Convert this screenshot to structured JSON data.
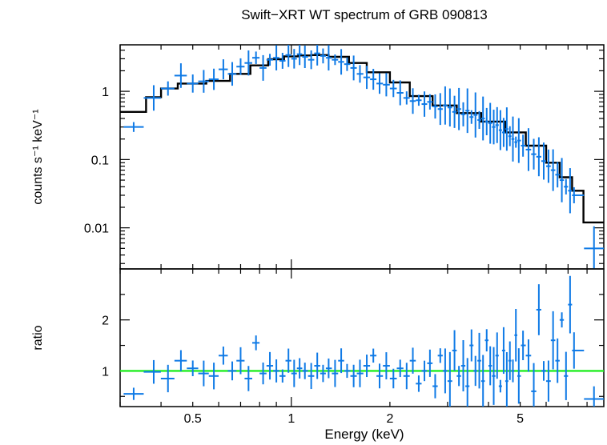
{
  "chart_data": [
    {
      "type": "scatter",
      "panel": "spectrum",
      "title": "Swift−XRT WT spectrum of GRB 090813",
      "ylabel": "counts s⁻¹ keV⁻¹",
      "xlabel": "",
      "xscale": "log",
      "yscale": "log",
      "xlim": [
        0.3,
        9.0
      ],
      "ylim": [
        0.0025,
        4.8
      ],
      "yticks": [
        {
          "value": 1,
          "label": "1"
        },
        {
          "value": 0.1,
          "label": "0.1"
        },
        {
          "value": 0.01,
          "label": "0.01"
        }
      ],
      "series": [
        {
          "kind": "data",
          "color": "#0f7ae6",
          "x": [
            0.33,
            0.38,
            0.42,
            0.46,
            0.5,
            0.54,
            0.58,
            0.62,
            0.66,
            0.7,
            0.74,
            0.78,
            0.82,
            0.86,
            0.9,
            0.94,
            0.98,
            1.02,
            1.06,
            1.1,
            1.15,
            1.2,
            1.25,
            1.3,
            1.36,
            1.42,
            1.48,
            1.55,
            1.62,
            1.7,
            1.78,
            1.86,
            1.95,
            2.05,
            2.15,
            2.25,
            2.35,
            2.45,
            2.55,
            2.65,
            2.75,
            2.85,
            2.95,
            3.05,
            3.15,
            3.25,
            3.35,
            3.45,
            3.55,
            3.65,
            3.75,
            3.85,
            3.95,
            4.05,
            4.15,
            4.25,
            4.35,
            4.45,
            4.55,
            4.65,
            4.75,
            4.85,
            4.95,
            5.1,
            5.3,
            5.5,
            5.7,
            5.9,
            6.1,
            6.3,
            6.5,
            6.7,
            6.9,
            7.1,
            7.3,
            8.4
          ],
          "y": [
            0.3,
            0.8,
            1.1,
            1.7,
            1.3,
            1.4,
            1.5,
            2.1,
            1.8,
            2.3,
            2.6,
            3.1,
            2.2,
            2.9,
            3.1,
            2.8,
            3.4,
            3.0,
            3.5,
            3.2,
            2.9,
            3.6,
            3.3,
            3.1,
            2.9,
            2.7,
            2.5,
            2.2,
            1.8,
            1.6,
            1.5,
            1.3,
            1.25,
            1.1,
            0.95,
            0.8,
            0.72,
            0.74,
            0.65,
            0.7,
            0.6,
            0.55,
            0.62,
            0.58,
            0.5,
            0.55,
            0.46,
            0.52,
            0.42,
            0.45,
            0.38,
            0.4,
            0.36,
            0.34,
            0.3,
            0.32,
            0.27,
            0.25,
            0.28,
            0.22,
            0.2,
            0.18,
            0.19,
            0.16,
            0.14,
            0.12,
            0.11,
            0.095,
            0.08,
            0.07,
            0.06,
            0.05,
            0.04,
            0.035,
            0.03,
            0.005
          ]
        },
        {
          "kind": "model",
          "color": "#000000",
          "x": [
            0.3,
            0.36,
            0.4,
            0.45,
            0.55,
            0.65,
            0.75,
            0.85,
            0.95,
            1.05,
            1.15,
            1.3,
            1.5,
            1.7,
            2.0,
            2.3,
            2.7,
            3.2,
            3.8,
            4.5,
            5.2,
            6.0,
            6.6,
            7.2,
            7.8,
            9.0
          ],
          "y": [
            0.5,
            0.82,
            1.1,
            1.3,
            1.42,
            1.8,
            2.4,
            2.95,
            3.25,
            3.35,
            3.4,
            3.2,
            2.6,
            1.9,
            1.35,
            0.85,
            0.62,
            0.48,
            0.36,
            0.25,
            0.16,
            0.09,
            0.055,
            0.035,
            0.012,
            0.012
          ]
        }
      ]
    },
    {
      "type": "scatter",
      "panel": "ratio",
      "title": "",
      "ylabel": "ratio",
      "xlabel": "Energy (keV)",
      "xscale": "log",
      "yscale": "linear",
      "xlim": [
        0.3,
        9.0
      ],
      "ylim": [
        0.3,
        3.0
      ],
      "yticks": [
        {
          "value": 1,
          "label": "1"
        },
        {
          "value": 2,
          "label": "2"
        }
      ],
      "xticks": [
        {
          "value": 0.5,
          "label": "0.5"
        },
        {
          "value": 1,
          "label": "1"
        },
        {
          "value": 2,
          "label": "2"
        },
        {
          "value": 5,
          "label": "5"
        }
      ],
      "reference_line": {
        "value": 1,
        "color": "#22ee22"
      },
      "series": [
        {
          "kind": "data",
          "color": "#0f7ae6",
          "x": [
            0.33,
            0.38,
            0.42,
            0.46,
            0.5,
            0.54,
            0.58,
            0.62,
            0.66,
            0.7,
            0.74,
            0.78,
            0.82,
            0.86,
            0.9,
            0.94,
            0.98,
            1.02,
            1.06,
            1.1,
            1.15,
            1.2,
            1.25,
            1.3,
            1.36,
            1.42,
            1.48,
            1.55,
            1.62,
            1.7,
            1.78,
            1.86,
            1.95,
            2.05,
            2.15,
            2.25,
            2.35,
            2.45,
            2.55,
            2.65,
            2.75,
            2.85,
            2.95,
            3.05,
            3.15,
            3.25,
            3.35,
            3.45,
            3.55,
            3.65,
            3.75,
            3.85,
            3.95,
            4.05,
            4.15,
            4.25,
            4.35,
            4.45,
            4.55,
            4.65,
            4.75,
            4.85,
            4.95,
            5.1,
            5.3,
            5.5,
            5.7,
            5.9,
            6.1,
            6.3,
            6.5,
            6.7,
            6.9,
            7.1,
            7.3,
            8.4
          ],
          "y": [
            0.55,
            0.98,
            0.85,
            1.2,
            1.05,
            0.95,
            0.9,
            1.3,
            1.0,
            1.2,
            0.85,
            1.55,
            0.95,
            1.1,
            1.0,
            0.9,
            1.2,
            0.95,
            1.05,
            1.0,
            0.9,
            1.1,
            0.95,
            1.05,
            0.95,
            1.2,
            1.0,
            0.9,
            0.95,
            1.1,
            1.3,
            0.9,
            1.1,
            0.85,
            1.05,
            0.9,
            1.2,
            0.75,
            1.0,
            1.15,
            0.7,
            1.3,
            1.0,
            0.8,
            1.4,
            0.9,
            1.1,
            0.7,
            1.5,
            1.0,
            1.2,
            0.8,
            1.6,
            1.1,
            0.9,
            1.3,
            0.7,
            1.4,
            0.8,
            1.2,
            1.0,
            1.7,
            0.9,
            1.5,
            1.3,
            0.6,
            2.2,
            1.0,
            0.8,
            1.6,
            1.2,
            2.0,
            0.9,
            2.3,
            1.4,
            0.45
          ]
        }
      ]
    }
  ]
}
